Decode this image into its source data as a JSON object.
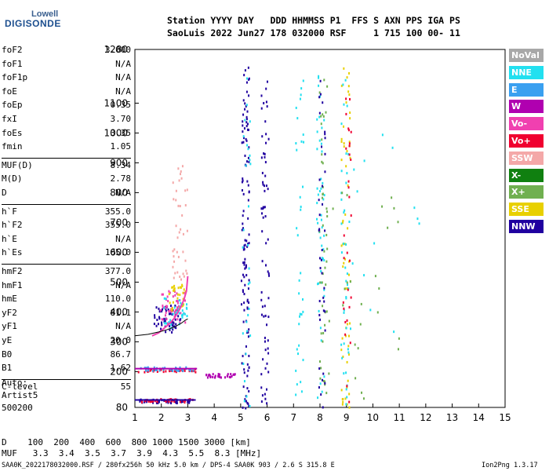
{
  "logo": {
    "top": "Lowell",
    "main": "DIGISONDE"
  },
  "header": {
    "line1": "Station YYYY DAY   DDD HHMMSS P1  FFS S AXN PPS IGA PS",
    "line2": "SaoLuis 2022 Jun27 178 032000 RSF     1 715 100 00- 11"
  },
  "params": [
    {
      "name": "foF2",
      "value": "3.000"
    },
    {
      "name": "foF1",
      "value": "N/A"
    },
    {
      "name": "foF1p",
      "value": "N/A"
    },
    {
      "name": "foE",
      "value": "N/A"
    },
    {
      "name": "foEp",
      "value": "0.35"
    },
    {
      "name": "fxI",
      "value": "3.70"
    },
    {
      "name": "foEs",
      "value": "3.35"
    },
    {
      "name": "fmin",
      "value": "1.05"
    },
    {
      "name": "MUF(D)",
      "value": "8.34"
    },
    {
      "name": "M(D)",
      "value": "2.78"
    },
    {
      "name": "D",
      "value": "N/A"
    },
    {
      "name": "h`F",
      "value": "355.0"
    },
    {
      "name": "h`F2",
      "value": "355.0"
    },
    {
      "name": "h`E",
      "value": "N/A"
    },
    {
      "name": "h`Es",
      "value": "105.0"
    },
    {
      "name": "hmF2",
      "value": "377.0"
    },
    {
      "name": "hmF1",
      "value": "N/A"
    },
    {
      "name": "hmE",
      "value": "110.0"
    },
    {
      "name": "yF2",
      "value": "81.1"
    },
    {
      "name": "yF1",
      "value": "N/A"
    },
    {
      "name": "yE",
      "value": "20.0"
    },
    {
      "name": "B0",
      "value": "86.7"
    },
    {
      "name": "B1",
      "value": "1.62"
    },
    {
      "name": "C-level",
      "value": "55"
    }
  ],
  "auto": {
    "l1": "Auto:",
    "l2": "Artist5",
    "l3": "500200"
  },
  "legend": [
    {
      "label": "NoVal",
      "color": "#a8a8a8"
    },
    {
      "label": "NNE",
      "color": "#22e0f0"
    },
    {
      "label": "E",
      "color": "#3aa0f0"
    },
    {
      "label": "W",
      "color": "#b000b0"
    },
    {
      "label": "Vo-",
      "color": "#f040b0"
    },
    {
      "label": "Vo+",
      "color": "#f00030"
    },
    {
      "label": "SSW",
      "color": "#f4a8a8"
    },
    {
      "label": "X-",
      "color": "#108010"
    },
    {
      "label": "X+",
      "color": "#70b050"
    },
    {
      "label": "SSE",
      "color": "#e8d000"
    },
    {
      "label": "NNW",
      "color": "#2000a0"
    }
  ],
  "muf_table": {
    "d_row": "D    100  200  400  600  800 1000 1500 3000 [km]",
    "muf_row": "MUF   3.3  3.4  3.5  3.7  3.9  4.3  5.5  8.3 [MHz]"
  },
  "footer": {
    "left": "SAA0K_2022178032000.RSF / 280fx256h 50 kHz 5.0 km / DPS-4 SAA0K 903 / 2.6 S 315.8 E",
    "right": "Ion2Png 1.3.17"
  },
  "chart_data": {
    "type": "scatter",
    "x_ticks": [
      "1",
      "2",
      "3",
      "4",
      "5",
      "6",
      "7",
      "8",
      "9",
      "10",
      "11",
      "12",
      "13",
      "14",
      "15"
    ],
    "y_ticks": [
      "80",
      "200",
      "300",
      "400",
      "500",
      "600",
      "700",
      "800",
      "900",
      "1000",
      "1100",
      "1280"
    ],
    "xlim": [
      1,
      15
    ],
    "ylim": [
      80,
      1280
    ],
    "grid": false,
    "xlabel": "",
    "ylabel": "",
    "traces": [
      {
        "name": "F2 trace O",
        "x": [
          1.65,
          1.9,
          2.1,
          2.3,
          2.5,
          2.7,
          2.85,
          2.95,
          3.0
        ],
        "y": [
          320,
          330,
          345,
          360,
          380,
          410,
          440,
          470,
          520
        ],
        "color": "#f040b0"
      },
      {
        "name": "profile",
        "x": [
          1.0,
          1.5,
          1.9,
          2.2,
          2.5,
          2.75,
          2.9,
          3.0
        ],
        "y": [
          320,
          325,
          333,
          340,
          350,
          362,
          372,
          377
        ],
        "color": "#000000"
      },
      {
        "name": "Es layer",
        "x": [
          1.0,
          1.5,
          2.0,
          2.5,
          3.0,
          3.35
        ],
        "y": [
          210,
          210,
          210,
          210,
          210,
          210
        ],
        "color": "#b000b0"
      },
      {
        "name": "Es low",
        "x": [
          1.0,
          1.5,
          2.0,
          2.5,
          3.0,
          3.3
        ],
        "y": [
          105,
          105,
          105,
          105,
          105,
          105
        ],
        "color": "#2000a0"
      }
    ],
    "clusters": [
      {
        "x": 2.2,
        "y": 380,
        "w": 1.0,
        "h": 90,
        "color": "#2000a0",
        "n": 60
      },
      {
        "x": 2.4,
        "y": 420,
        "w": 1.0,
        "h": 110,
        "color": "#f040b0",
        "n": 50
      },
      {
        "x": 2.6,
        "y": 450,
        "w": 0.7,
        "h": 90,
        "color": "#e8d000",
        "n": 30
      },
      {
        "x": 2.5,
        "y": 400,
        "w": 0.9,
        "h": 100,
        "color": "#22e0f0",
        "n": 30
      },
      {
        "x": 2.7,
        "y": 700,
        "w": 0.6,
        "h": 400,
        "color": "#f4a8a8",
        "n": 40
      },
      {
        "x": 5.15,
        "y": 650,
        "w": 0.3,
        "h": 1150,
        "color": "#2000a0",
        "n": 120
      },
      {
        "x": 5.2,
        "y": 650,
        "w": 0.3,
        "h": 1150,
        "color": "#22e0f0",
        "n": 30
      },
      {
        "x": 5.9,
        "y": 650,
        "w": 0.3,
        "h": 1150,
        "color": "#2000a0",
        "n": 70
      },
      {
        "x": 7.2,
        "y": 650,
        "w": 0.3,
        "h": 1150,
        "color": "#22e0f0",
        "n": 35
      },
      {
        "x": 8.0,
        "y": 650,
        "w": 0.3,
        "h": 1150,
        "color": "#22e0f0",
        "n": 50
      },
      {
        "x": 8.1,
        "y": 650,
        "w": 0.3,
        "h": 1150,
        "color": "#70b050",
        "n": 40
      },
      {
        "x": 8.05,
        "y": 650,
        "w": 0.25,
        "h": 1150,
        "color": "#2000a0",
        "n": 40
      },
      {
        "x": 8.95,
        "y": 650,
        "w": 0.35,
        "h": 1150,
        "color": "#e8d000",
        "n": 60
      },
      {
        "x": 8.9,
        "y": 650,
        "w": 0.3,
        "h": 1150,
        "color": "#22e0f0",
        "n": 40
      },
      {
        "x": 9.0,
        "y": 650,
        "w": 0.3,
        "h": 1150,
        "color": "#f00030",
        "n": 30
      },
      {
        "x": 2.2,
        "y": 208,
        "w": 2.2,
        "h": 12,
        "color": "#f00030",
        "n": 40
      },
      {
        "x": 2.2,
        "y": 212,
        "w": 2.2,
        "h": 12,
        "color": "#3aa0f0",
        "n": 40
      },
      {
        "x": 4.2,
        "y": 190,
        "w": 1.2,
        "h": 12,
        "color": "#b000b0",
        "n": 30
      },
      {
        "x": 2.1,
        "y": 104,
        "w": 2.0,
        "h": 12,
        "color": "#2000a0",
        "n": 50
      },
      {
        "x": 2.2,
        "y": 106,
        "w": 2.0,
        "h": 12,
        "color": "#f00030",
        "n": 40
      },
      {
        "x": 9.5,
        "y": 500,
        "w": 3.0,
        "h": 800,
        "color": "#70b050",
        "n": 30
      },
      {
        "x": 10.5,
        "y": 600,
        "w": 3.0,
        "h": 800,
        "color": "#22e0f0",
        "n": 15
      }
    ]
  }
}
